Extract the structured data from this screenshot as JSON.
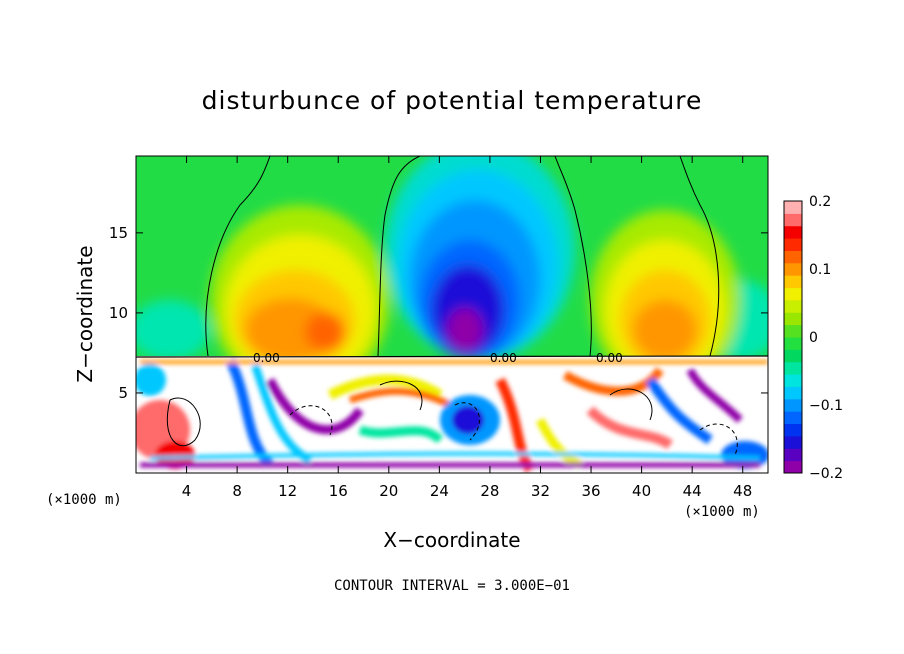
{
  "chart_data": {
    "type": "heatmap",
    "title": "disturbunce of potential temperature",
    "xlabel": "X−coordinate",
    "ylabel": "Z−coordinate",
    "x_unit": "(×1000 m)",
    "x_ticks": [
      "4",
      "8",
      "12",
      "16",
      "20",
      "24",
      "28",
      "32",
      "36",
      "40",
      "44",
      "48"
    ],
    "x_tick_values": [
      4,
      8,
      12,
      16,
      20,
      24,
      28,
      32,
      36,
      40,
      44,
      48
    ],
    "y_ticks": [
      "5",
      "10",
      "15"
    ],
    "y_tick_values": [
      5,
      10,
      15
    ],
    "xlim": [
      0,
      50
    ],
    "ylim": [
      0,
      19.8
    ],
    "colorbar": {
      "ticks": [
        "0.2",
        "0.1",
        "0",
        "−0.1",
        "−0.2"
      ],
      "tick_values": [
        0.2,
        0.1,
        0,
        -0.1,
        -0.2
      ],
      "range": [
        -0.2,
        0.2
      ],
      "colors": [
        "#8f00a8",
        "#5a00c0",
        "#1b10d8",
        "#0033f0",
        "#0066ff",
        "#0096ff",
        "#00c8ff",
        "#00e4e0",
        "#00e6a0",
        "#00d860",
        "#22e040",
        "#55e020",
        "#99e600",
        "#c8ee00",
        "#f0f000",
        "#ffc800",
        "#ff9600",
        "#ff6400",
        "#ff2a00",
        "#f50000",
        "#ff6a6a",
        "#ffb0b0"
      ]
    },
    "zero_contour_labels": [
      "0.00",
      "0.00",
      "0.00"
    ],
    "contour_interval": "CONTOUR INTERVAL = 3.000E−01"
  }
}
